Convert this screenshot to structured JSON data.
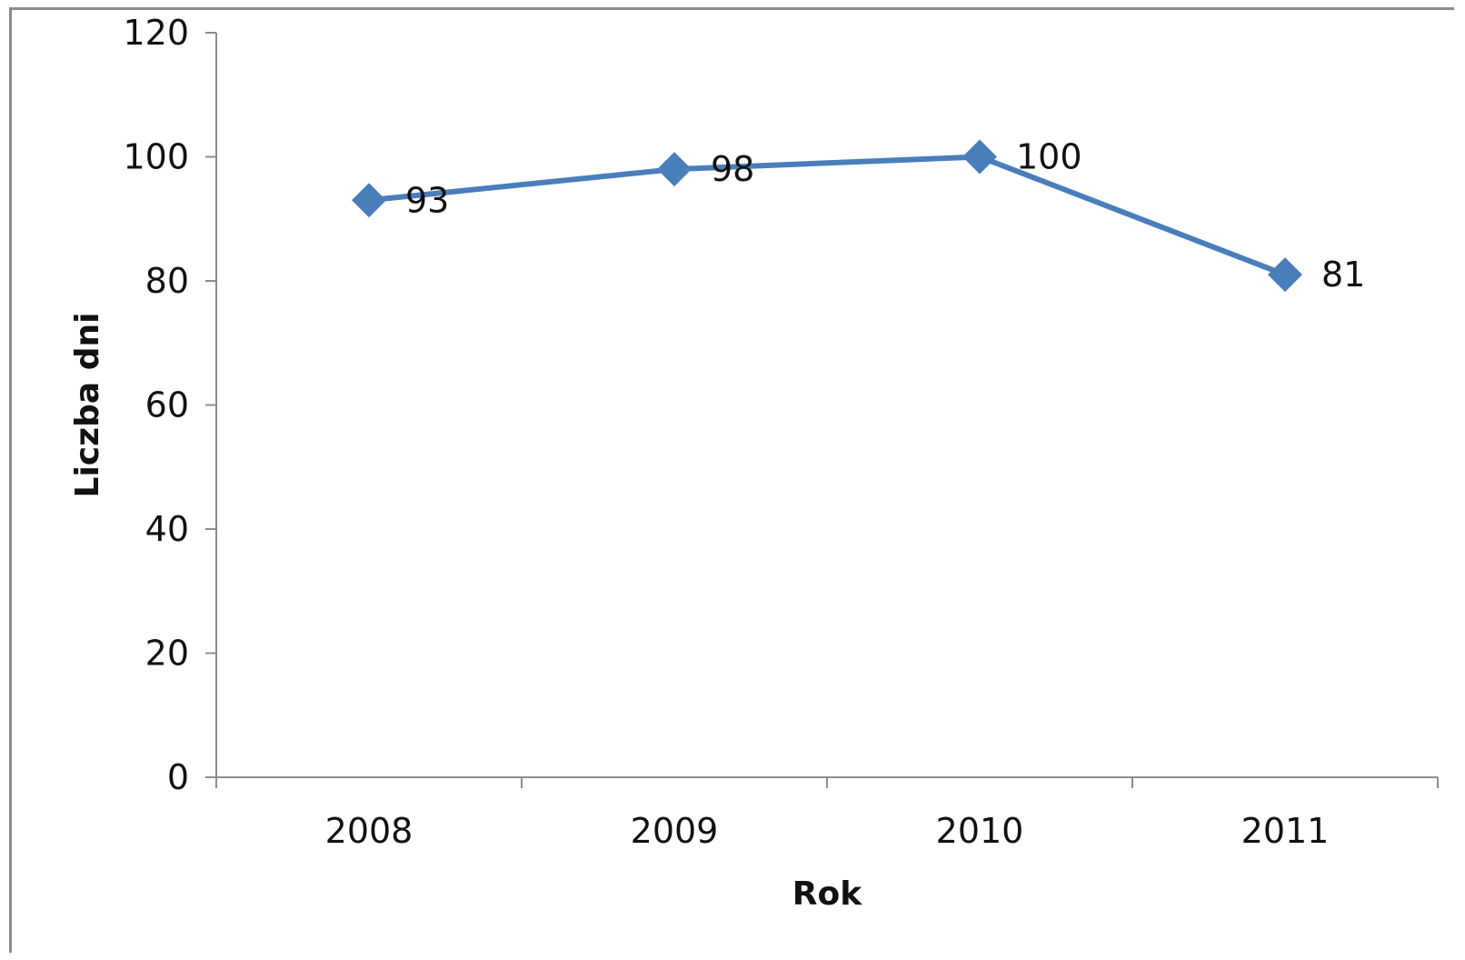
{
  "chart_data": {
    "type": "line",
    "title": "",
    "xlabel": "Rok",
    "ylabel": "Liczba dni",
    "categories": [
      "2008",
      "2009",
      "2010",
      "2011"
    ],
    "values": [
      93,
      98,
      100,
      81
    ],
    "data_labels": [
      "93",
      "98",
      "100",
      "81"
    ],
    "y_ticks": [
      "0",
      "20",
      "40",
      "60",
      "80",
      "100",
      "120"
    ],
    "ylim": [
      0,
      120
    ],
    "grid": false,
    "legend": "none",
    "marker": "diamond",
    "series_color": "#4a7ebb"
  }
}
